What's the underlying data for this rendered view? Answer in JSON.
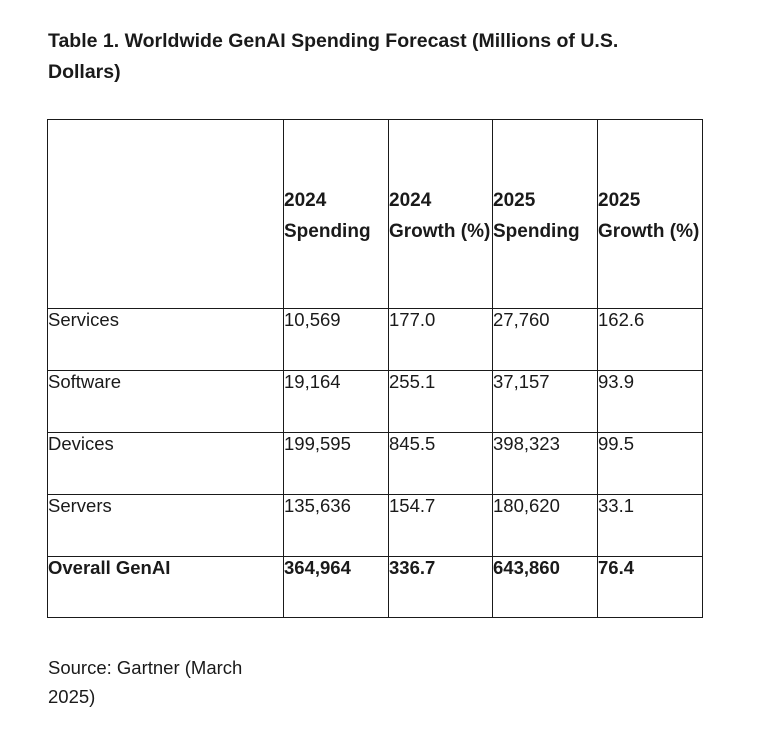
{
  "caption": "Table 1. Worldwide GenAI Spending Forecast (Millions of U.S. Dollars)",
  "table": {
    "headers": [
      "",
      "2024 Spending",
      "2024 Growth (%)",
      "2025 Spending",
      "2025 Growth (%)"
    ],
    "rows": [
      [
        "Services",
        "10,569",
        "177.0",
        "27,760",
        "162.6"
      ],
      [
        "Software",
        "19,164",
        "255.1",
        "37,157",
        "93.9"
      ],
      [
        "Devices",
        "199,595",
        "845.5",
        "398,323",
        "99.5"
      ],
      [
        "Servers",
        "135,636",
        "154.7",
        "180,620",
        "33.1"
      ],
      [
        "Overall GenAI",
        "364,964",
        "336.7",
        "643,860",
        "76.4"
      ]
    ]
  },
  "source": "Source: Gartner (March 2025)"
}
